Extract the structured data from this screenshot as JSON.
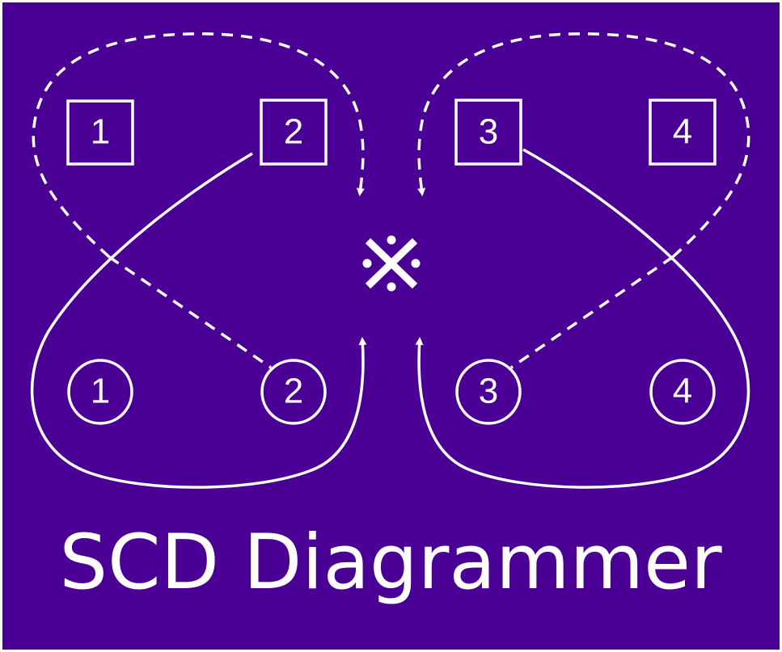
{
  "title": "SCD Diagrammer",
  "center_symbol": "※",
  "colors": {
    "background": "#4a0094",
    "foreground": "#ffffff",
    "border": "#ffffff"
  },
  "square_nodes": [
    {
      "label": "1"
    },
    {
      "label": "2"
    },
    {
      "label": "3"
    },
    {
      "label": "4"
    }
  ],
  "circle_nodes": [
    {
      "label": "1"
    },
    {
      "label": "2"
    },
    {
      "label": "3"
    },
    {
      "label": "4"
    }
  ]
}
